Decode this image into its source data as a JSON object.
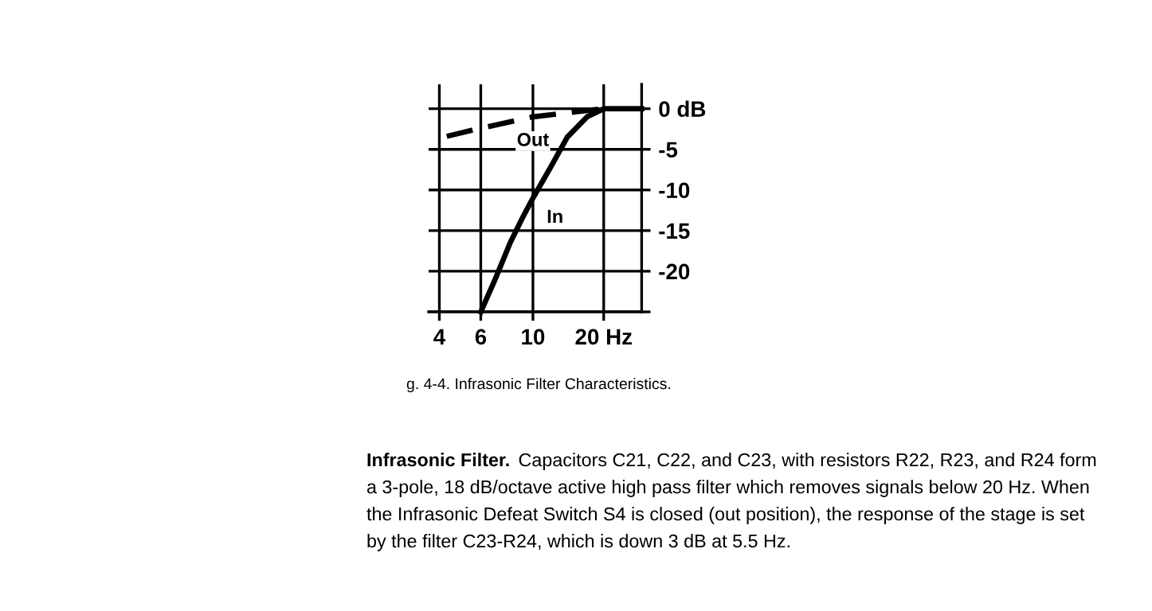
{
  "chart_data": {
    "type": "line",
    "log": "x",
    "xlim": [
      3.6,
      29
    ],
    "xticks": [
      4,
      6,
      10,
      {
        "value": 20,
        "label": "20 Hz"
      }
    ],
    "ylim": [
      -25,
      3
    ],
    "yticks": [
      {
        "value": -25,
        "label": null
      },
      -20,
      -15,
      -10,
      -5,
      {
        "value": 0,
        "label": "0 dB"
      }
    ],
    "grid": true,
    "legend": false,
    "series": [
      {
        "name": "Out",
        "color": "#000000",
        "line_style": "dashed",
        "x": [
          4.3,
          6,
          10,
          15,
          20
        ],
        "values": [
          -3.4,
          -2.4,
          -1,
          -0.4,
          0
        ]
      },
      {
        "name": "In",
        "color": "#000000",
        "line_style": "solid",
        "x": [
          6,
          7,
          8,
          9,
          10,
          12,
          14,
          17,
          20,
          29
        ],
        "values": [
          -25,
          -20.6,
          -16.5,
          -13.5,
          -11,
          -7,
          -3.5,
          -1,
          0,
          0
        ]
      }
    ],
    "annotations": [
      "g. 4-4. Infrasonic Filter Characteristics.",
      "Infrasonic Filter.",
      "Capacitors C21, C22, and C23, with resistors R22, R23, and R24 form",
      "a 3-pole, 18 dB/octave active high pass filter which removes signals below 20 Hz. When",
      "the Infrasonic Defeat Switch S4 is closed (out position), the response of the stage is set",
      "by the filter C23-R24, which is down 3 dB at 5.5 Hz."
    ]
  }
}
